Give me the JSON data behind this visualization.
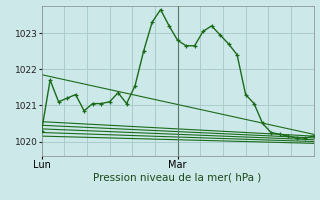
{
  "xlabel": "Pression niveau de la mer( hPa )",
  "background_color": "#cce8e8",
  "grid_color": "#aacccc",
  "line_color": "#1a6b1a",
  "ylim": [
    1019.6,
    1023.75
  ],
  "xlim": [
    0,
    48
  ],
  "yticks": [
    1020,
    1021,
    1022,
    1023
  ],
  "xtick_positions": [
    0,
    24
  ],
  "xtick_labels": [
    "Lun",
    "Mar"
  ],
  "vline_x": 24,
  "main_line_x": [
    0,
    1.5,
    3,
    4.5,
    6,
    7.5,
    9,
    10.5,
    12,
    13.5,
    15,
    16.5,
    18,
    19.5,
    21,
    22.5,
    24,
    25.5,
    27,
    28.5,
    30,
    31.5,
    33,
    34.5,
    36,
    37.5,
    39,
    40.5,
    42,
    43.5,
    45,
    46.5,
    48
  ],
  "main_line_y": [
    1020.3,
    1021.7,
    1021.1,
    1021.2,
    1021.3,
    1020.85,
    1021.05,
    1021.05,
    1021.1,
    1021.35,
    1021.05,
    1021.55,
    1022.5,
    1023.3,
    1023.65,
    1023.2,
    1022.8,
    1022.65,
    1022.65,
    1023.05,
    1023.2,
    1022.95,
    1022.7,
    1022.4,
    1021.3,
    1021.05,
    1020.5,
    1020.25,
    1020.2,
    1020.15,
    1020.1,
    1020.1,
    1020.15
  ],
  "fan_lines": [
    {
      "x": [
        0,
        48
      ],
      "y": [
        1021.85,
        1020.2
      ]
    },
    {
      "x": [
        0,
        48
      ],
      "y": [
        1020.55,
        1020.15
      ]
    },
    {
      "x": [
        0,
        48
      ],
      "y": [
        1020.45,
        1020.1
      ]
    },
    {
      "x": [
        0,
        48
      ],
      "y": [
        1020.35,
        1020.05
      ]
    },
    {
      "x": [
        0,
        48
      ],
      "y": [
        1020.25,
        1020.0
      ]
    },
    {
      "x": [
        0,
        48
      ],
      "y": [
        1020.15,
        1019.95
      ]
    }
  ],
  "vline_color": "#557a6a"
}
